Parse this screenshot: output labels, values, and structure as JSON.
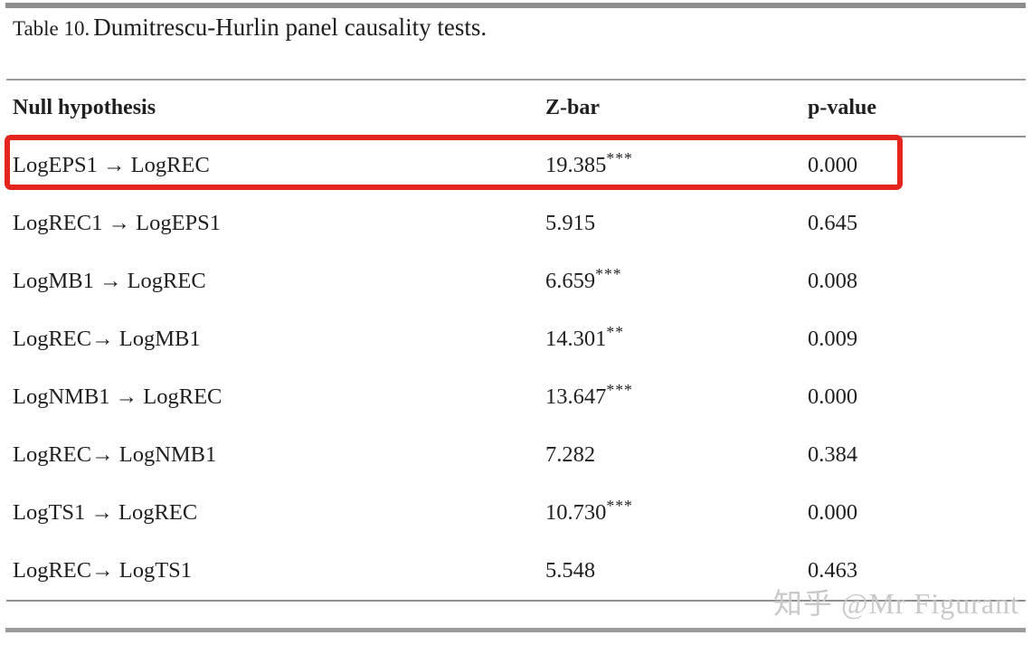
{
  "caption": {
    "label": "Table 10.",
    "description": "Dumitrescu-Hurlin panel causality tests."
  },
  "table": {
    "columns": [
      "Null hypothesis",
      "Z-bar",
      "p-value"
    ],
    "rows": [
      {
        "hypothesis": "LogEPS1 → LogREC",
        "zbar": "19.385",
        "stars": "***",
        "pvalue": "0.000",
        "highlighted": true
      },
      {
        "hypothesis": "LogREC1 → LogEPS1",
        "zbar": "5.915",
        "stars": "",
        "pvalue": "0.645",
        "highlighted": false
      },
      {
        "hypothesis": "LogMB1 → LogREC",
        "zbar": "6.659",
        "stars": "***",
        "pvalue": "0.008",
        "highlighted": false
      },
      {
        "hypothesis": "LogREC→ LogMB1",
        "zbar": "14.301",
        "stars": "**",
        "pvalue": "0.009",
        "highlighted": false
      },
      {
        "hypothesis": "LogNMB1 → LogREC",
        "zbar": "13.647",
        "stars": "***",
        "pvalue": "0.000",
        "highlighted": false
      },
      {
        "hypothesis": "LogREC→ LogNMB1",
        "zbar": "7.282",
        "stars": "",
        "pvalue": "0.384",
        "highlighted": false
      },
      {
        "hypothesis": "LogTS1 → LogREC",
        "zbar": "10.730",
        "stars": "***",
        "pvalue": "0.000",
        "highlighted": false
      },
      {
        "hypothesis": "LogREC→ LogTS1",
        "zbar": "5.548",
        "stars": "",
        "pvalue": "0.463",
        "highlighted": false
      }
    ]
  },
  "highlight": {
    "color": "#e4251e",
    "highlighted_row": "LogEPS1 → LogREC"
  },
  "watermark": {
    "text": "知乎 @Mr Figurant",
    "color": "#c9c9c9"
  }
}
